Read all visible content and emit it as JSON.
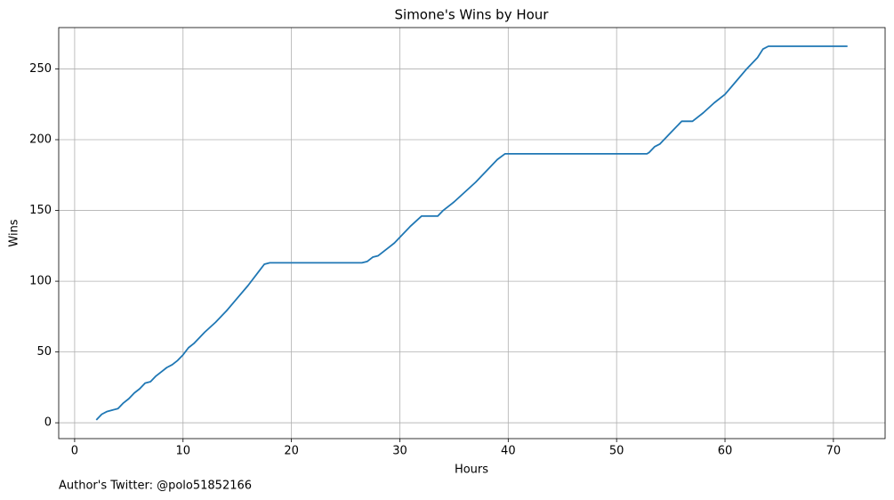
{
  "chart_data": {
    "type": "line",
    "title": "Simone's Wins by Hour",
    "x_label": "Hours",
    "y_label": "Wins",
    "footer": "Author's Twitter: @polo51852166",
    "color": "#1f77b4",
    "grid": true,
    "x": [
      2,
      2.5,
      3,
      3.5,
      4,
      4.5,
      5,
      5.5,
      6,
      6.5,
      7,
      7.5,
      8,
      8.5,
      9,
      9.5,
      10,
      10.5,
      11,
      11.5,
      12,
      13,
      14,
      15,
      16,
      17,
      17.5,
      18,
      26.5,
      27,
      27.5,
      28,
      28.5,
      29,
      29.5,
      30,
      31,
      32,
      33.5,
      34,
      35,
      36,
      37,
      38,
      39,
      39.7,
      52.8,
      53,
      53.5,
      54,
      55,
      56,
      57,
      58,
      59,
      60,
      61,
      62,
      63,
      63.5,
      64,
      71.3
    ],
    "values": [
      2,
      6,
      8,
      9,
      10,
      14,
      17,
      21,
      24,
      28,
      29,
      33,
      36,
      39,
      41,
      44,
      48,
      53,
      56,
      60,
      64,
      71,
      79,
      88,
      97,
      107,
      112,
      113,
      113,
      114,
      117,
      118,
      121,
      124,
      127,
      131,
      139,
      146,
      146,
      150,
      156,
      163,
      170,
      178,
      186,
      190,
      190,
      191,
      195,
      197,
      205,
      213,
      213,
      219,
      226,
      232,
      241,
      250,
      258,
      264,
      266,
      266
    ],
    "xlim": [
      -1.47,
      74.77
    ],
    "ylim": [
      -11.2,
      279.2
    ],
    "xticks": [
      0,
      10,
      20,
      30,
      40,
      50,
      60,
      70
    ],
    "yticks": [
      0,
      50,
      100,
      150,
      200,
      250
    ]
  }
}
